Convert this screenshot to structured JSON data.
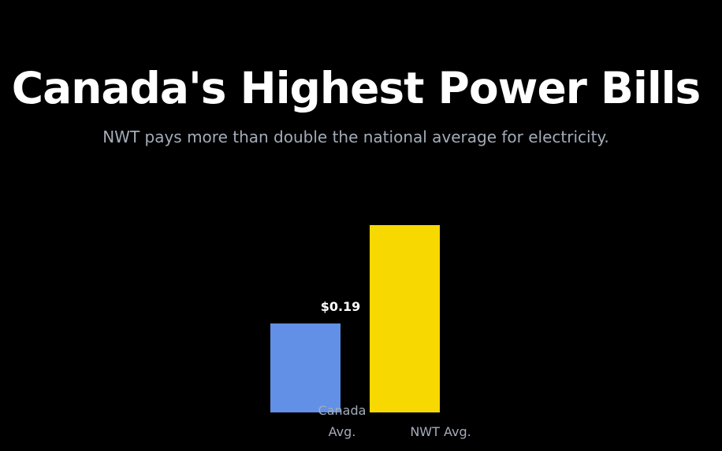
{
  "header": {
    "title": "Canada's Highest Power Bills",
    "subtitle": "NWT pays more than double the national average for electricity."
  },
  "colors": {
    "background": "#000000",
    "title": "#ffffff",
    "subtitle": "#a3acb9",
    "canada_bar": "#6190e6",
    "nwt_bar": "#f7d800"
  },
  "chart_data": {
    "type": "bar",
    "title": "Canada's Highest Power Bills",
    "subtitle": "NWT pays more than double the national average for electricity.",
    "categories": [
      [
        "Canada",
        "Avg."
      ],
      [
        "NWT Avg."
      ]
    ],
    "values": [
      0.19,
      0.4
    ],
    "data_labels": [
      "$0.19",
      ""
    ],
    "colors": [
      "#6190e6",
      "#f7d800"
    ],
    "ylim": [
      0,
      0.4
    ],
    "grid": false,
    "legend": "none"
  }
}
